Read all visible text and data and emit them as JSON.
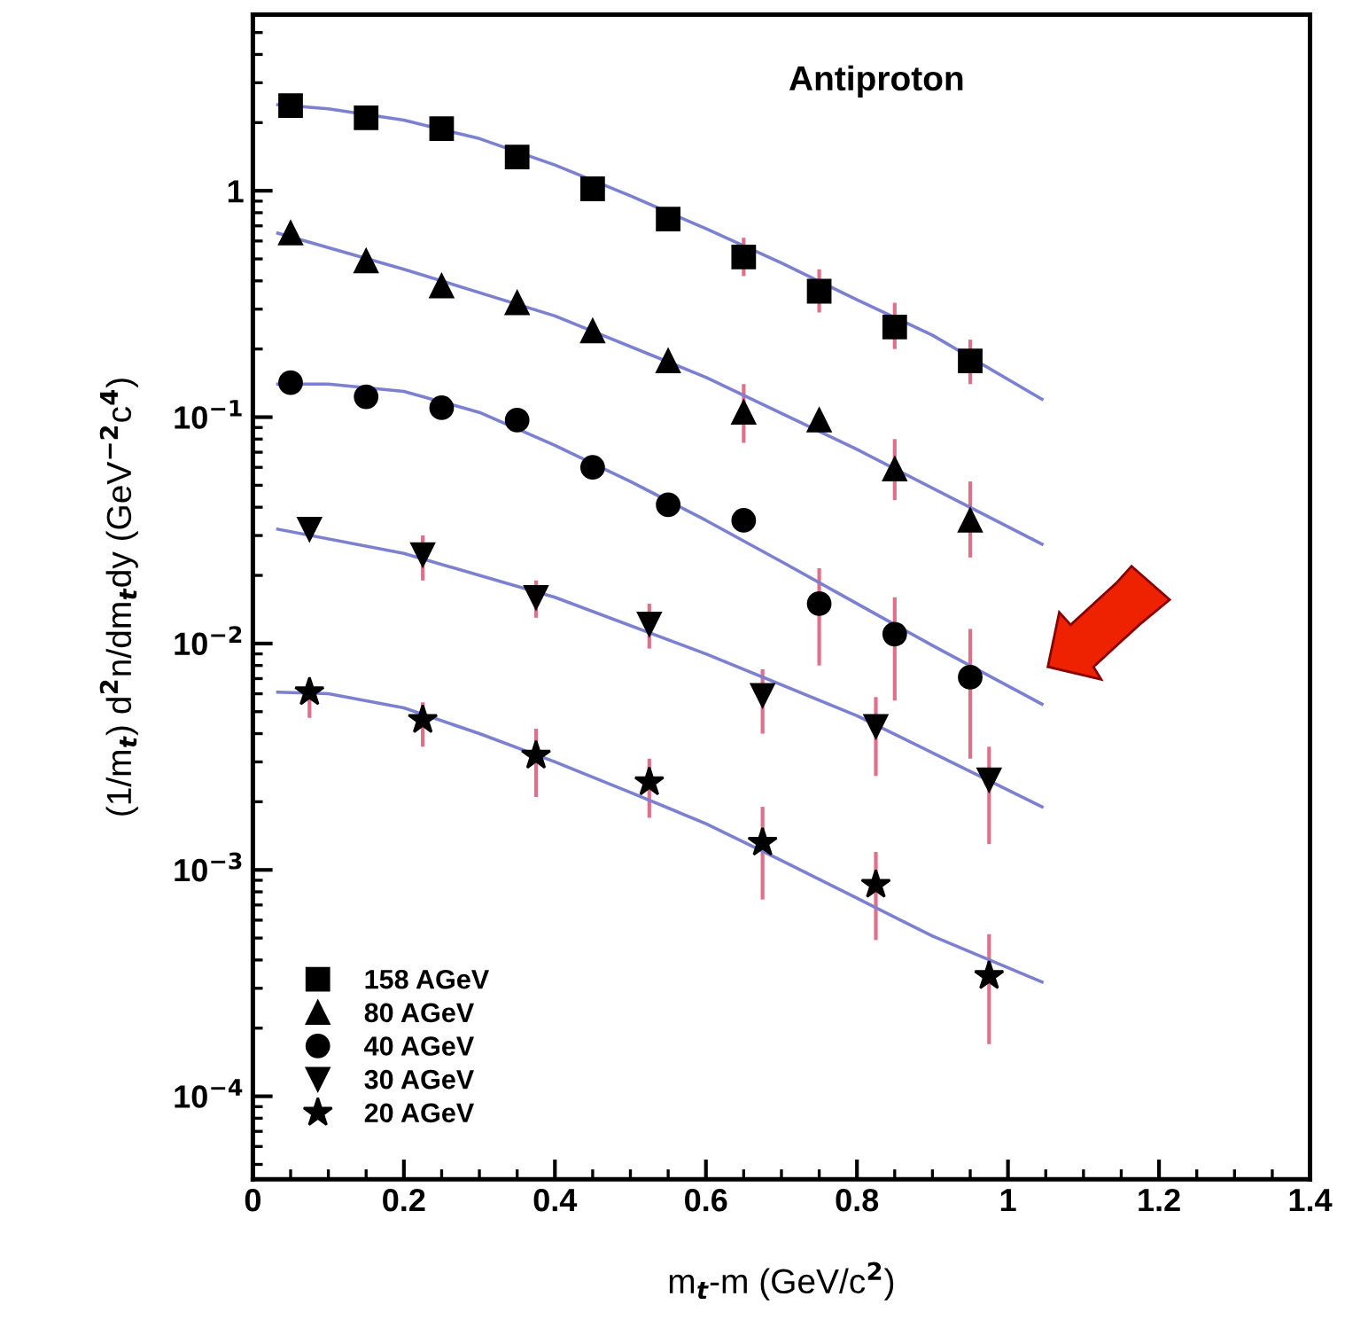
{
  "chart_data": {
    "type": "scatter",
    "xlabel": "m$_{t}$-m (GeV/c$^{2}$)",
    "ylabel": "(1/m$_{t}$) d$^{2}$n/dm$_{t}$dy (GeV$^{−2}$c$^{4}$)",
    "annotations": [
      "Antiproton"
    ],
    "log": "y",
    "xlim": [
      0,
      1.4
    ],
    "xticks": [
      0,
      0.2,
      0.4,
      0.6,
      0.8,
      1,
      1.2,
      1.4
    ],
    "ylim": [
      4.3e-05,
      6
    ],
    "yticks": [
      {
        "value": 0.0001,
        "label": "10$^{−4}$"
      },
      {
        "value": 0.001,
        "label": "10$^{−3}$"
      },
      {
        "value": 0.01,
        "label": "10$^{−2}$"
      },
      {
        "value": 0.1,
        "label": "10$^{−1}$"
      },
      1
    ],
    "grid": false,
    "legend": "bottom left",
    "series": [
      {
        "name": "158 AGeV",
        "marker": "square",
        "color": "#000000",
        "x": [
          0.05,
          0.15,
          0.25,
          0.35,
          0.45,
          0.55,
          0.65,
          0.75,
          0.85,
          0.95
        ],
        "values": [
          2.38,
          2.1,
          1.88,
          1.41,
          1.02,
          0.75,
          0.51,
          0.36,
          0.25,
          0.177
        ],
        "errors": [
          null,
          null,
          null,
          null,
          null,
          null,
          [
            0.42,
            0.62
          ],
          [
            0.29,
            0.45
          ],
          [
            0.2,
            0.32
          ],
          [
            0.14,
            0.22
          ]
        ]
      },
      {
        "name": "80 AGeV",
        "marker": "triangle",
        "color": "#000000",
        "x": [
          0.05,
          0.15,
          0.25,
          0.35,
          0.45,
          0.55,
          0.65,
          0.75,
          0.85,
          0.95
        ],
        "values": [
          0.65,
          0.49,
          0.38,
          0.32,
          0.24,
          0.177,
          0.105,
          0.097,
          0.059,
          0.035
        ],
        "errors": [
          null,
          null,
          null,
          null,
          null,
          null,
          [
            0.077,
            0.14
          ],
          null,
          [
            0.043,
            0.08
          ],
          [
            0.024,
            0.052
          ]
        ]
      },
      {
        "name": "40 AGeV",
        "marker": "circle",
        "color": "#000000",
        "x": [
          0.05,
          0.15,
          0.25,
          0.35,
          0.45,
          0.55,
          0.65,
          0.75,
          0.85,
          0.95
        ],
        "values": [
          0.142,
          0.123,
          0.11,
          0.097,
          0.06,
          0.041,
          0.035,
          0.015,
          0.011,
          0.0071
        ],
        "errors": [
          null,
          null,
          null,
          null,
          null,
          null,
          null,
          [
            0.008,
            0.0215
          ],
          [
            0.0056,
            0.016
          ],
          [
            0.0031,
            0.0116
          ]
        ]
      },
      {
        "name": "30 AGeV",
        "marker": "triangle-down",
        "color": "#000000",
        "x": [
          0.075,
          0.225,
          0.375,
          0.525,
          0.675,
          0.825,
          0.975
        ],
        "values": [
          0.032,
          0.0247,
          0.016,
          0.0122,
          0.0059,
          0.0043,
          0.0025
        ],
        "errors": [
          null,
          [
            0.019,
            0.03
          ],
          [
            0.013,
            0.019
          ],
          [
            0.0095,
            0.015
          ],
          [
            0.004,
            0.0077
          ],
          [
            0.0026,
            0.0058
          ],
          [
            0.0013,
            0.0035
          ]
        ]
      },
      {
        "name": "20 AGeV",
        "marker": "star",
        "color": "#000000",
        "x": [
          0.075,
          0.225,
          0.375,
          0.525,
          0.675,
          0.825,
          0.975
        ],
        "values": [
          0.0061,
          0.0046,
          0.0032,
          0.00244,
          0.00132,
          0.00086,
          0.00034
        ],
        "errors": [
          [
            0.0047,
            0.0068
          ],
          [
            0.0035,
            0.0055
          ],
          [
            0.0021,
            0.0042
          ],
          [
            0.0017,
            0.0031
          ],
          [
            0.00074,
            0.0019
          ],
          [
            0.00049,
            0.0012
          ],
          [
            0.00017,
            0.00052
          ]
        ]
      },
      {
        "type": "line",
        "color": "#7b80d0",
        "x": [
          0.033,
          0.1,
          0.2,
          0.3,
          0.4,
          0.5,
          0.6,
          0.7,
          0.8,
          0.9,
          1.045
        ],
        "values": [
          2.4,
          2.3,
          2.05,
          1.7,
          1.3,
          0.95,
          0.68,
          0.48,
          0.33,
          0.23,
          0.12
        ]
      },
      {
        "type": "line",
        "color": "#7b80d0",
        "x": [
          0.033,
          0.2,
          0.4,
          0.6,
          0.8,
          1.045
        ],
        "values": [
          0.65,
          0.45,
          0.28,
          0.15,
          0.072,
          0.0275
        ]
      },
      {
        "type": "line",
        "color": "#7b80d0",
        "x": [
          0.033,
          0.1,
          0.2,
          0.3,
          0.4,
          0.5,
          0.6,
          0.7,
          0.8,
          0.9,
          1.045
        ],
        "values": [
          0.14,
          0.14,
          0.13,
          0.105,
          0.075,
          0.052,
          0.035,
          0.023,
          0.015,
          0.0098,
          0.0054
        ]
      },
      {
        "type": "line",
        "color": "#7b80d0",
        "x": [
          0.033,
          0.2,
          0.4,
          0.6,
          0.8,
          1.045
        ],
        "values": [
          0.032,
          0.025,
          0.016,
          0.009,
          0.0048,
          0.0019
        ]
      },
      {
        "type": "line",
        "color": "#7b80d0",
        "x": [
          0.033,
          0.1,
          0.2,
          0.3,
          0.4,
          0.5,
          0.6,
          0.7,
          0.8,
          0.9,
          1.045
        ],
        "values": [
          0.0061,
          0.006,
          0.0052,
          0.004,
          0.003,
          0.0022,
          0.0016,
          0.0011,
          0.00075,
          0.00051,
          0.00032
        ]
      }
    ]
  }
}
